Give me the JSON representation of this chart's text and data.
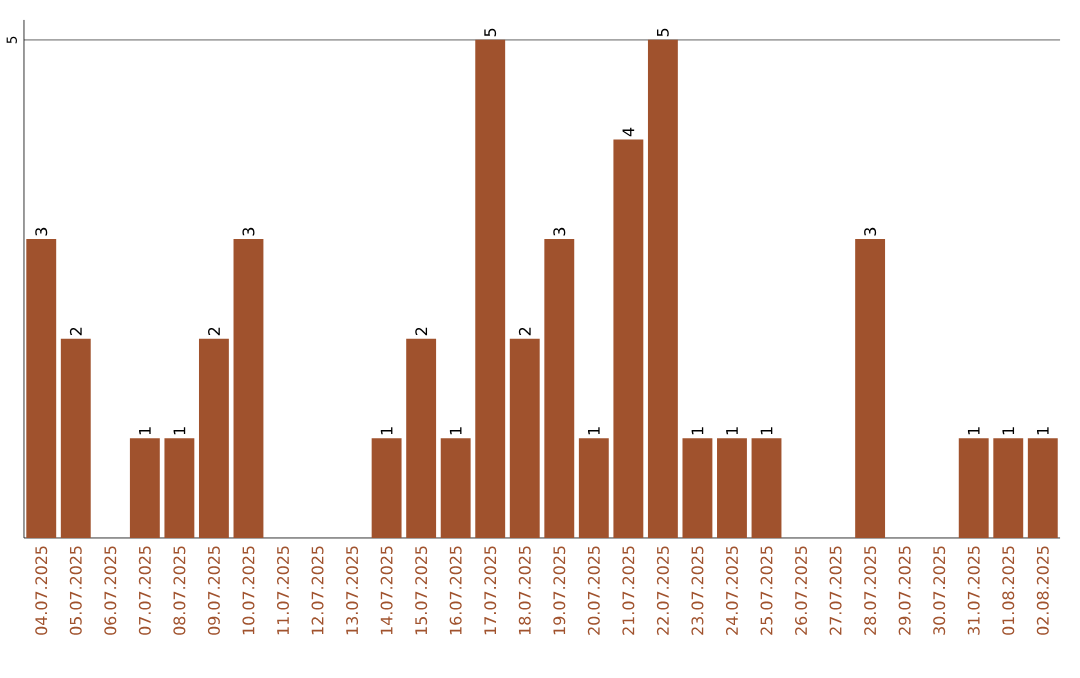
{
  "chart_data": {
    "type": "bar",
    "categories": [
      "04.07.2025",
      "05.07.2025",
      "06.07.2025",
      "07.07.2025",
      "08.07.2025",
      "09.07.2025",
      "10.07.2025",
      "11.07.2025",
      "12.07.2025",
      "13.07.2025",
      "14.07.2025",
      "15.07.2025",
      "16.07.2025",
      "17.07.2025",
      "18.07.2025",
      "19.07.2025",
      "20.07.2025",
      "21.07.2025",
      "22.07.2025",
      "23.07.2025",
      "24.07.2025",
      "25.07.2025",
      "26.07.2025",
      "27.07.2025",
      "28.07.2025",
      "29.07.2025",
      "30.07.2025",
      "31.07.2025",
      "01.08.2025",
      "02.08.2025"
    ],
    "values": [
      3,
      2,
      0,
      1,
      1,
      2,
      3,
      0,
      0,
      0,
      1,
      2,
      1,
      5,
      2,
      3,
      1,
      4,
      5,
      1,
      1,
      1,
      0,
      0,
      3,
      0,
      0,
      1,
      1,
      1
    ],
    "value_labels": [
      "3",
      "2",
      null,
      "1",
      "1",
      "2",
      "3",
      null,
      null,
      null,
      "1",
      "2",
      "1",
      "5",
      "2",
      "3",
      "1",
      "4",
      "5",
      "1",
      "1",
      "1",
      null,
      null,
      "3",
      null,
      null,
      "1",
      "1",
      "1"
    ],
    "color": "#a0522d",
    "ylim": [
      0,
      5.2
    ],
    "yticks": [
      5
    ],
    "grid": "y"
  }
}
